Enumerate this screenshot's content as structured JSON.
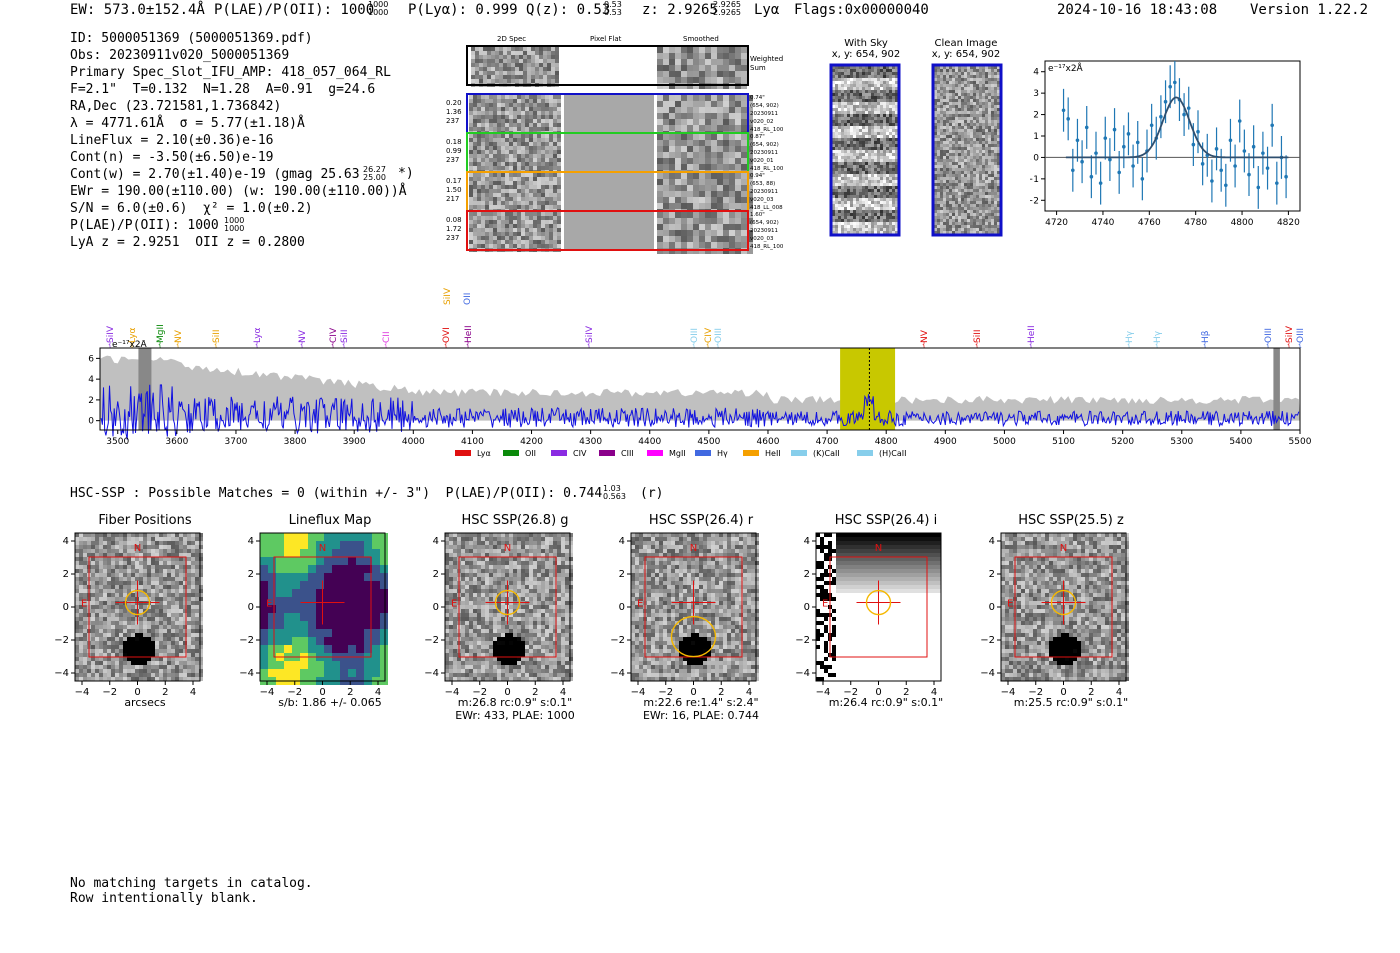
{
  "header": {
    "ew": "EW: 573.0±152.4Å",
    "plae_label": "P(LAE)/P(OII): 1000",
    "plae_sup": "1000",
    "plae_sub": "1000",
    "plya": "P(Lyα): 0.999",
    "qz": "Q(z): 0.53",
    "qz_sup": "0.53",
    "qz_sub": "0.53",
    "z": "z: 2.9265",
    "z_sup": "2.9265",
    "z_sub": "2.9265",
    "line": "Lyα",
    "flags": "Flags:0x00000040",
    "datetime": "2024-10-16 18:43:08",
    "version": "Version 1.22.2"
  },
  "info_lines": [
    "ID: 5000051369 (5000051369.pdf)",
    "Obs: 20230911v020_5000051369",
    "Primary Spec_Slot_IFU_AMP: 418_057_064_RL",
    "F=2.1\"  T=0.132  N=1.28  A=0.91  g=24.6",
    "RA,Dec (23.721581,1.736842)",
    "λ = 4771.61Å  σ = 5.77(±1.18)Å",
    "LineFlux = 2.10(±0.36)e-16",
    "Cont(n) = -3.50(±6.50)e-19",
    "Cont(w) = 2.70(±1.40)e-19 (gmag 25.63",
    "EWr = 190.00(±110.00) (w: 190.00(±110.00))Å",
    "S/N = 6.0(±0.6)  χ² = 1.0(±0.2)",
    "P(LAE)/P(OII): 1000",
    "LyA z = 2.9251  OII z = 0.2800"
  ],
  "info_extra": {
    "gmag_sup": "26.27",
    "gmag_sub": "25.00",
    "gmag_tail": "*)",
    "plae_sup": "1000",
    "plae_sub": "1000"
  },
  "cutouts": {
    "col_2d": "2D Spec",
    "col_flat": "Pixel Flat",
    "col_smooth": "Smoothed",
    "weighted": "Weighted Sum",
    "rows": [
      {
        "left": [
          "0.20",
          "1.36",
          "237"
        ],
        "right": [
          "0.74\"",
          "(654, 902)",
          "20230911",
          "v020_02",
          "418_RL_100"
        ],
        "color": "#1010c8"
      },
      {
        "left": [
          "0.18",
          "0.99",
          "237"
        ],
        "right": [
          "0.87\"",
          "(654, 902)",
          "20230911",
          "v020_01",
          "418_RL_100"
        ],
        "color": "#22cc22"
      },
      {
        "left": [
          "0.17",
          "1.50",
          "217"
        ],
        "right": [
          "0.94\"",
          "(653, 88)",
          "20230911",
          "v020_03",
          "418_LL_008"
        ],
        "color": "#f5a000"
      },
      {
        "left": [
          "0.08",
          "1.72",
          "237"
        ],
        "right": [
          "1.60\"",
          "(654, 902)",
          "20230911",
          "v020_03",
          "418_RL_100"
        ],
        "color": "#e01010"
      }
    ],
    "with_sky": "With Sky",
    "with_sky_xy": "x, y: 654, 902",
    "clean": "Clean Image",
    "clean_xy": "x, y: 654, 902"
  },
  "fit_chart": {
    "unit": "e⁻¹⁷x2Å",
    "xticks": [
      "4720",
      "4740",
      "4760",
      "4780",
      "4800",
      "4820"
    ],
    "yticks": [
      "4",
      "3",
      "2",
      "1",
      "0",
      "−1",
      "−2"
    ]
  },
  "spectrum": {
    "unit": "e⁻¹⁷x2Å",
    "xticks": [
      "3500",
      "3600",
      "3700",
      "3800",
      "3900",
      "4000",
      "4100",
      "4200",
      "4300",
      "4400",
      "4500",
      "4600",
      "4700",
      "4800",
      "4900",
      "5000",
      "5100",
      "5200",
      "5300",
      "5400",
      "5500"
    ],
    "yticks": [
      "6",
      "4",
      "2",
      "0"
    ],
    "top_labels": [
      {
        "t": "SiIV",
        "x": 110,
        "c": "#8a2be2"
      },
      {
        "t": "Lyα",
        "x": 132,
        "c": "#e8a000"
      },
      {
        "t": "MgII",
        "x": 160,
        "c": "#0a8a0a"
      },
      {
        "t": "NV",
        "x": 178,
        "c": "#e8a000"
      },
      {
        "t": "SiII",
        "x": 216,
        "c": "#e8a000"
      },
      {
        "t": "Lyα",
        "x": 257,
        "c": "#8a2be2"
      },
      {
        "t": "NV",
        "x": 302,
        "c": "#8a2be2"
      },
      {
        "t": "CIV",
        "x": 333,
        "c": "#8a008a"
      },
      {
        "t": "SiII",
        "x": 344,
        "c": "#8a2be2"
      },
      {
        "t": "CII",
        "x": 386,
        "c": "#e040e0"
      },
      {
        "t": "OVI",
        "x": 446,
        "c": "#e01010"
      },
      {
        "t": "HeII",
        "x": 468,
        "c": "#8a008a"
      },
      {
        "t": "SiIV",
        "x": 589,
        "c": "#8a2be2"
      },
      {
        "t": "OIII",
        "x": 694,
        "c": "#87ceeb"
      },
      {
        "t": "CIV",
        "x": 708,
        "c": "#e8a000"
      },
      {
        "t": "OIII",
        "x": 718,
        "c": "#87ceeb"
      },
      {
        "t": "NV",
        "x": 924,
        "c": "#e01010"
      },
      {
        "t": "SiII",
        "x": 977,
        "c": "#e01010"
      },
      {
        "t": "HeII",
        "x": 1031,
        "c": "#8a2be2"
      },
      {
        "t": "Hγ",
        "x": 1129,
        "c": "#87ceeb"
      },
      {
        "t": "Hγ",
        "x": 1157,
        "c": "#87ceeb"
      },
      {
        "t": "Hβ",
        "x": 1205,
        "c": "#4169e1"
      },
      {
        "t": "OIII",
        "x": 1268,
        "c": "#4169e1"
      },
      {
        "t": "SiIV",
        "x": 1289,
        "c": "#e01010"
      },
      {
        "t": "OIII",
        "x": 1300,
        "c": "#4169e1"
      }
    ],
    "upper_labels": [
      {
        "t": "SiIV",
        "x": 447,
        "c": "#e8a000"
      },
      {
        "t": "OII",
        "x": 467,
        "c": "#4169e1"
      }
    ],
    "legend": [
      {
        "t": "Lyα",
        "c": "#e01010"
      },
      {
        "t": "OII",
        "c": "#0a8a0a"
      },
      {
        "t": "CIV",
        "c": "#8a2be2"
      },
      {
        "t": "CIII",
        "c": "#8a008a"
      },
      {
        "t": "MgII",
        "c": "#ff00ff"
      },
      {
        "t": "Hγ",
        "c": "#4169e1"
      },
      {
        "t": "HeII",
        "c": "#f5a000"
      },
      {
        "t": "(K)CaII",
        "c": "#87ceeb"
      },
      {
        "t": "(H)CaII",
        "c": "#87ceeb"
      }
    ]
  },
  "hsc_line": {
    "text": "HSC-SSP : Possible Matches = 0 (within +/- 3\")  P(LAE)/P(OII): 0.744",
    "sup": "1.03",
    "sub": "0.563",
    "tail": "(r)"
  },
  "panels": [
    {
      "title": "Fiber Positions",
      "cap1": "arcsecs",
      "cap2": ""
    },
    {
      "title": "Lineflux Map",
      "cap1": "s/b: 1.86 +/- 0.065",
      "cap2": ""
    },
    {
      "title": "HSC SSP(26.8) g",
      "cap1": "m:26.8 rc:0.9\"  s:0.1\"",
      "cap2": "EWr: 433, PLAE: 1000"
    },
    {
      "title": "HSC SSP(26.4) r",
      "cap1": "m:22.6  re:1.4\"  s:2.4\"",
      "cap2": "EWr: 16, PLAE: 0.744"
    },
    {
      "title": "HSC SSP(26.4) i",
      "cap1": "m:26.4 rc:0.9\"  s:0.1\"",
      "cap2": ""
    },
    {
      "title": "HSC SSP(25.5) z",
      "cap1": "m:25.5 rc:0.9\"  s:0.1\"",
      "cap2": ""
    }
  ],
  "panel_axes": {
    "xticks": [
      "−4",
      "−2",
      "0",
      "2",
      "4"
    ],
    "yticks": [
      "4",
      "2",
      "0",
      "−2",
      "−4"
    ],
    "north": "N",
    "east": "E"
  },
  "footer": {
    "line1": "No matching targets in catalog.",
    "line2": "Row intentionally blank."
  }
}
